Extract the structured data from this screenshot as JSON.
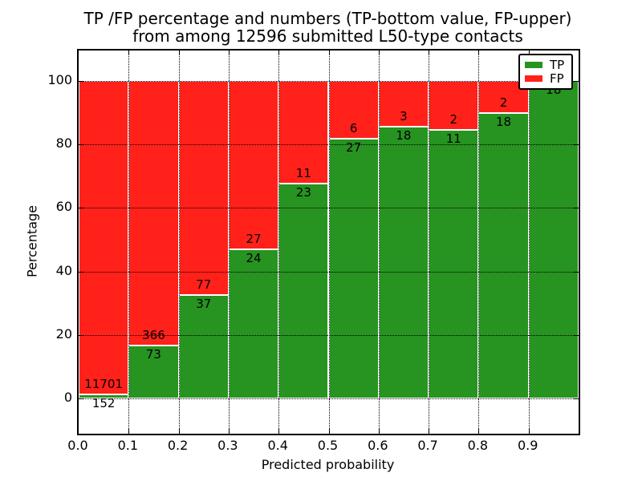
{
  "title": {
    "line1": "TP /FP percentage and numbers (TP-bottom value, FP-upper)",
    "line2": "from among 12596 submitted L50-type contacts"
  },
  "axes": {
    "xlabel": "Predicted probability",
    "ylabel": "Percentage",
    "x_tick_labels": [
      "0.0",
      "0.1",
      "0.2",
      "0.3",
      "0.4",
      "0.5",
      "0.6",
      "0.7",
      "0.8",
      "0.9"
    ],
    "y_tick_labels": [
      "0",
      "20",
      "40",
      "60",
      "80",
      "100"
    ],
    "y_tick_values": [
      0,
      20,
      40,
      60,
      80,
      100
    ],
    "grid_style": "dotted"
  },
  "legend": {
    "position": "upper-right",
    "items": [
      {
        "label": "TP",
        "color": "#279321"
      },
      {
        "label": "FP",
        "color": "#ff211a"
      }
    ]
  },
  "chart_data": {
    "type": "bar",
    "stacked": true,
    "title": "TP /FP percentage and numbers (TP-bottom value, FP-upper) from among 12596 submitted L50-type contacts",
    "xlabel": "Predicted probability",
    "ylabel": "Percentage",
    "total_contacts": 12596,
    "bins": [
      "0.0-0.1",
      "0.1-0.2",
      "0.2-0.3",
      "0.3-0.4",
      "0.4-0.5",
      "0.5-0.6",
      "0.6-0.7",
      "0.7-0.8",
      "0.8-0.9",
      "0.9-1.0"
    ],
    "categories": [
      "0.0",
      "0.1",
      "0.2",
      "0.3",
      "0.4",
      "0.5",
      "0.6",
      "0.7",
      "0.8",
      "0.9"
    ],
    "series": [
      {
        "name": "TP",
        "color": "#279321",
        "counts": [
          152,
          73,
          37,
          24,
          23,
          27,
          18,
          11,
          18,
          18
        ]
      },
      {
        "name": "FP",
        "color": "#ff211a",
        "counts": [
          11701,
          366,
          77,
          27,
          11,
          6,
          3,
          2,
          2,
          0
        ]
      }
    ],
    "y_unit": "percent of bin; TP+FP stack to 100%",
    "ylim": [
      -11,
      110
    ],
    "xlim": [
      0.0,
      1.0
    ],
    "legend_position": "upper right",
    "grid": "dotted"
  },
  "colors": {
    "tp": "#279321",
    "fp": "#ff211a",
    "bar_edge": "#ffffff",
    "grid": "#000000",
    "axis": "#000000",
    "background": "#ffffff"
  }
}
